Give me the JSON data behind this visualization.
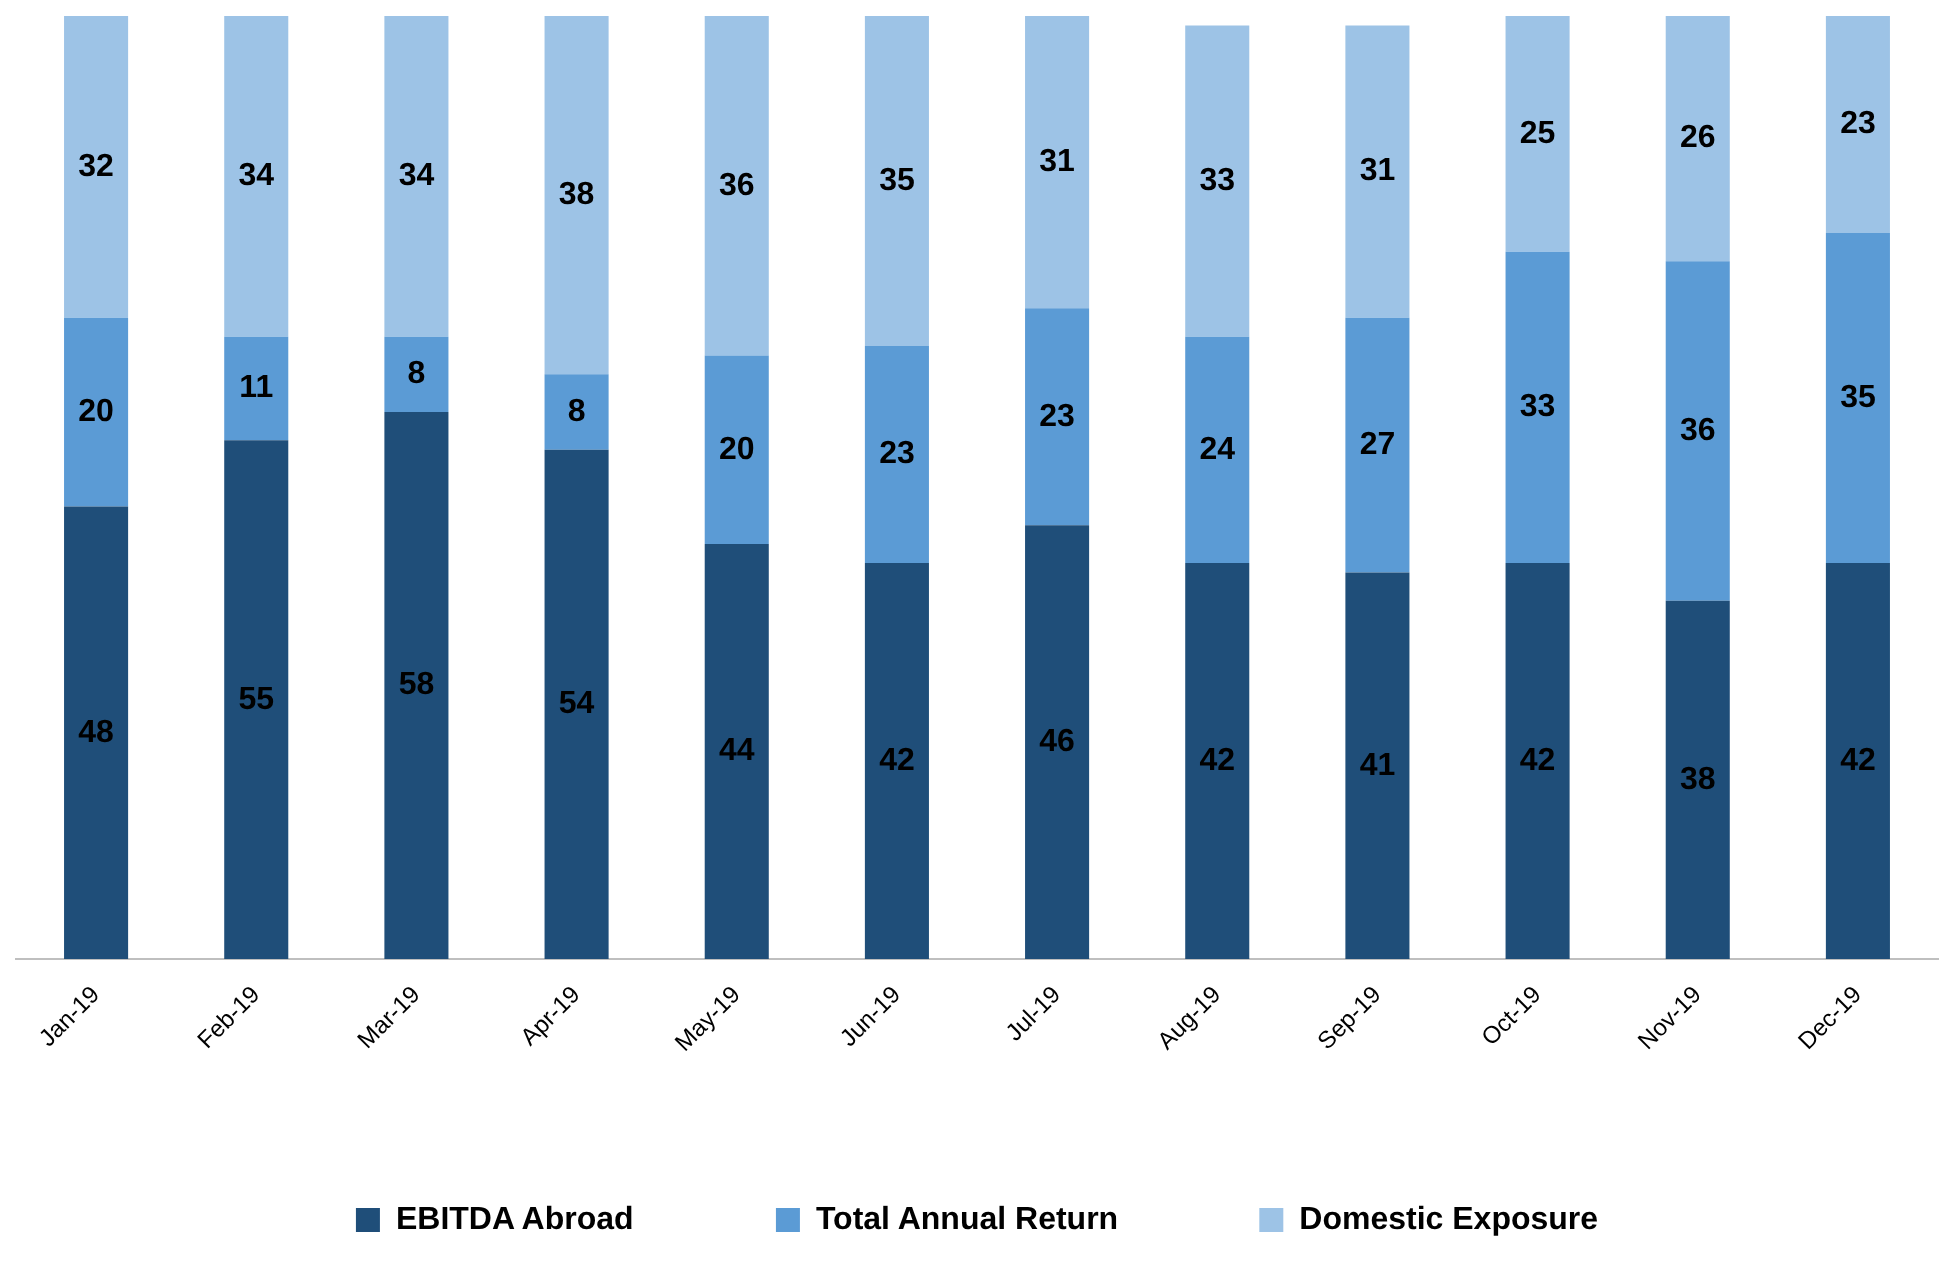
{
  "chart_data": {
    "type": "bar",
    "stacked": true,
    "data_labels": true,
    "legend": "bottom",
    "grid": false,
    "categories": [
      "Jan-19",
      "Feb-19",
      "Mar-19",
      "Apr-19",
      "May-19",
      "Jun-19",
      "Jul-19",
      "Aug-19",
      "Sep-19",
      "Oct-19",
      "Nov-19",
      "Dec-19"
    ],
    "series": [
      {
        "name": "EBITDA Abroad",
        "color": "#1f4e79",
        "values": [
          48,
          55,
          58,
          54,
          44,
          42,
          46,
          42,
          41,
          42,
          38,
          42
        ]
      },
      {
        "name": "Total Annual Return",
        "color": "#5b9bd5",
        "values": [
          20,
          11,
          8,
          8,
          20,
          23,
          23,
          24,
          27,
          33,
          36,
          35
        ]
      },
      {
        "name": "Domestic Exposure",
        "color": "#9dc3e6",
        "values": [
          32,
          34,
          34,
          38,
          36,
          35,
          31,
          33,
          31,
          25,
          26,
          23
        ]
      }
    ]
  }
}
